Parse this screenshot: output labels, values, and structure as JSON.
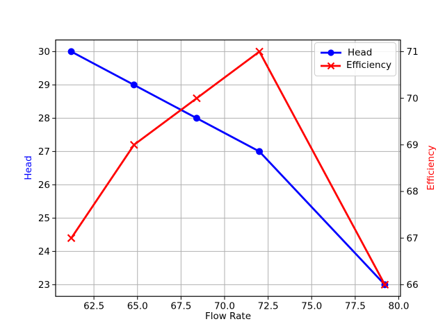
{
  "chart_data": {
    "type": "line",
    "title": "",
    "xlabel": "Flow Rate",
    "x": [
      61.2,
      64.8,
      68.4,
      72.0,
      79.2
    ],
    "xlim": [
      60.3,
      80.1
    ],
    "x_ticks": [
      62.5,
      65.0,
      67.5,
      70.0,
      72.5,
      75.0,
      77.5,
      80.0
    ],
    "x_tick_labels": [
      "62.5",
      "65.0",
      "67.5",
      "70.0",
      "72.5",
      "75.0",
      "77.5",
      "80.0"
    ],
    "left_axis": {
      "label": "Head",
      "color": "#0000ff",
      "lim": [
        22.65,
        30.35
      ],
      "ticks": [
        23,
        24,
        25,
        26,
        27,
        28,
        29,
        30
      ],
      "tick_labels": [
        "23",
        "24",
        "25",
        "26",
        "27",
        "28",
        "29",
        "30"
      ]
    },
    "right_axis": {
      "label": "Efficiency",
      "color": "#ff0000",
      "lim": [
        65.75,
        71.25
      ],
      "ticks": [
        66,
        67,
        68,
        69,
        70,
        71
      ],
      "tick_labels": [
        "66",
        "67",
        "68",
        "69",
        "70",
        "71"
      ]
    },
    "series": [
      {
        "name": "Head",
        "axis": "left",
        "color": "#0000ff",
        "marker": "circle",
        "values": [
          30,
          29,
          28,
          27,
          23
        ]
      },
      {
        "name": "Efficiency",
        "axis": "right",
        "color": "#ff0000",
        "marker": "x",
        "values": [
          67,
          69,
          70,
          71,
          66
        ]
      }
    ],
    "legend": {
      "position": "upper right",
      "entries": [
        "Head",
        "Efficiency"
      ]
    },
    "grid": true,
    "styles": {
      "grid_color": "#b0b0b0",
      "axis_color": "#000000",
      "tick_label_color": "#000000",
      "background": "#ffffff",
      "line_width": 2.8,
      "marker_size": 5
    }
  }
}
